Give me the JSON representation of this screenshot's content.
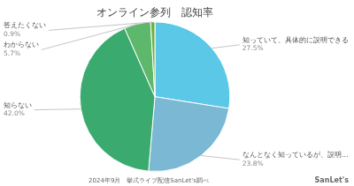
{
  "chart_data": {
    "type": "pie",
    "title": "オンライン参列　認知率",
    "categories": [
      "知っていて、具体的に説明できる",
      "なんとなく知っているが、説明…",
      "知らない",
      "わからない",
      "答えたくない"
    ],
    "values": [
      27.5,
      23.8,
      42.0,
      5.7,
      0.9
    ],
    "value_labels": [
      "27.5%",
      "23.8%",
      "42.0%",
      "5.7%",
      "0.9%"
    ],
    "data_labels": true,
    "colors": [
      "#5bc8e8",
      "#7ab8d4",
      "#3aaa6e",
      "#5db86b",
      "#6db040"
    ],
    "annotations": [
      "2024年9月　挙式ライブ配信SanLet's調べ",
      "SanLet's"
    ]
  }
}
